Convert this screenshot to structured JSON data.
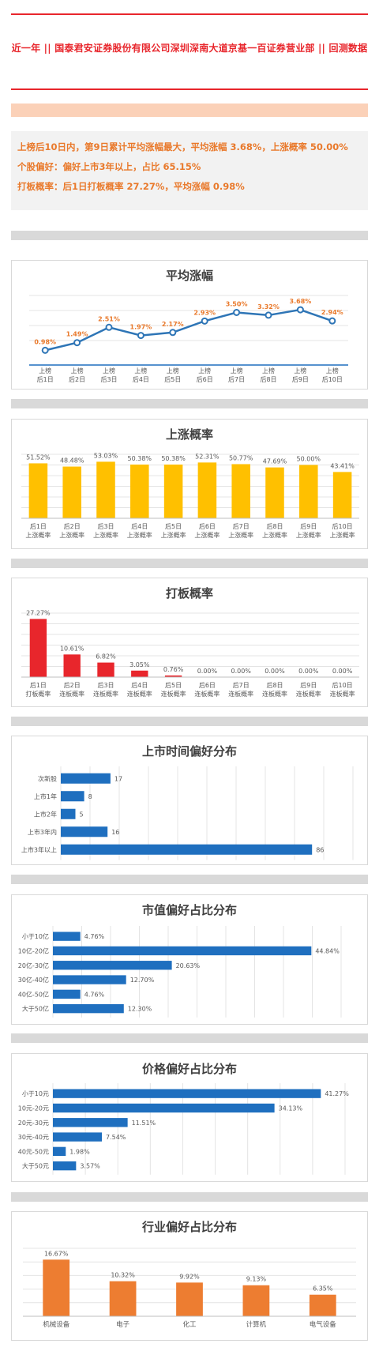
{
  "header": {
    "title": "近一年 || 国泰君安证券股份有限公司深圳深南大道京基一百证券营业部 || 回测数据"
  },
  "summary": {
    "line1": "上榜后10日内，第9日累计平均涨幅最大，平均涨幅 3.68%，上涨概率 50.00%",
    "line2": "个股偏好：偏好上市3年以上，占比 65.15%",
    "line3": "打板概率：后1日打板概率 27.27%，平均涨幅 0.98%"
  },
  "colors": {
    "line": "#2e75b6",
    "yellow": "#ffc000",
    "red": "#e8262c",
    "blue": "#1f6fbf",
    "orange": "#ed7d31",
    "label_orange": "#e9792b"
  },
  "chart_data": [
    {
      "type": "line",
      "title": "平均涨幅",
      "categories": [
        [
          "上榜",
          "后1日"
        ],
        [
          "上榜",
          "后2日"
        ],
        [
          "上榜",
          "后3日"
        ],
        [
          "上榜",
          "后4日"
        ],
        [
          "上榜",
          "后5日"
        ],
        [
          "上榜",
          "后6日"
        ],
        [
          "上榜",
          "后7日"
        ],
        [
          "上榜",
          "后8日"
        ],
        [
          "上榜",
          "后9日"
        ],
        [
          "上榜",
          "后10日"
        ]
      ],
      "values": [
        0.98,
        1.49,
        2.51,
        1.97,
        2.17,
        2.93,
        3.5,
        3.32,
        3.68,
        2.94
      ],
      "labels": [
        "0.98%",
        "1.49%",
        "2.51%",
        "1.97%",
        "2.17%",
        "2.93%",
        "3.50%",
        "3.32%",
        "3.68%",
        "2.94%"
      ],
      "ylim": [
        0,
        4
      ],
      "grid": true
    },
    {
      "type": "bar",
      "title": "上涨概率",
      "categories": [
        [
          "后1日",
          "上涨概率"
        ],
        [
          "后2日",
          "上涨概率"
        ],
        [
          "后3日",
          "上涨概率"
        ],
        [
          "后4日",
          "上涨概率"
        ],
        [
          "后5日",
          "上涨概率"
        ],
        [
          "后6日",
          "上涨概率"
        ],
        [
          "后7日",
          "上涨概率"
        ],
        [
          "后8日",
          "上涨概率"
        ],
        [
          "后9日",
          "上涨概率"
        ],
        [
          "后10日",
          "上涨概率"
        ]
      ],
      "values": [
        51.52,
        48.48,
        53.03,
        50.38,
        50.38,
        52.31,
        50.77,
        47.69,
        50.0,
        43.41
      ],
      "labels": [
        "51.52%",
        "48.48%",
        "53.03%",
        "50.38%",
        "50.38%",
        "52.31%",
        "50.77%",
        "47.69%",
        "50.00%",
        "43.41%"
      ],
      "ylim": [
        0,
        60
      ],
      "grid": true
    },
    {
      "type": "bar",
      "title": "打板概率",
      "categories": [
        [
          "后1日",
          "打板概率"
        ],
        [
          "后2日",
          "连板概率"
        ],
        [
          "后3日",
          "连板概率"
        ],
        [
          "后4日",
          "连板概率"
        ],
        [
          "后5日",
          "连板概率"
        ],
        [
          "后6日",
          "连板概率"
        ],
        [
          "后7日",
          "连板概率"
        ],
        [
          "后8日",
          "连板概率"
        ],
        [
          "后9日",
          "连板概率"
        ],
        [
          "后10日",
          "连板概率"
        ]
      ],
      "values": [
        27.27,
        10.61,
        6.82,
        3.05,
        0.76,
        0,
        0,
        0,
        0,
        0
      ],
      "labels": [
        "27.27%",
        "10.61%",
        "6.82%",
        "3.05%",
        "0.76%",
        "0.00%",
        "0.00%",
        "0.00%",
        "0.00%",
        "0.00%"
      ],
      "ylim": [
        0,
        30
      ],
      "grid": true
    },
    {
      "type": "bar",
      "orientation": "horizontal",
      "title": "上市时间偏好分布",
      "categories": [
        "次新股",
        "上市1年",
        "上市2年",
        "上市3年内",
        "上市3年以上"
      ],
      "values": [
        17,
        8,
        5,
        16,
        86
      ],
      "labels": [
        "17",
        "8",
        "5",
        "16",
        "86"
      ],
      "xlim": [
        0,
        100
      ],
      "grid": true
    },
    {
      "type": "bar",
      "orientation": "horizontal",
      "title": "市值偏好占比分布",
      "categories": [
        "小于10亿",
        "10亿-20亿",
        "20亿-30亿",
        "30亿-40亿",
        "40亿-50亿",
        "大于50亿"
      ],
      "values": [
        4.76,
        44.84,
        20.63,
        12.7,
        4.76,
        12.3
      ],
      "labels": [
        "4.76%",
        "44.84%",
        "20.63%",
        "12.70%",
        "4.76%",
        "12.30%"
      ],
      "xlim": [
        0,
        50
      ],
      "grid": true
    },
    {
      "type": "bar",
      "orientation": "horizontal",
      "title": "价格偏好占比分布",
      "categories": [
        "小于10元",
        "10元-20元",
        "20元-30元",
        "30元-40元",
        "40元-50元",
        "大于50元"
      ],
      "values": [
        41.27,
        34.13,
        11.51,
        7.54,
        1.98,
        3.57
      ],
      "labels": [
        "41.27%",
        "34.13%",
        "11.51%",
        "7.54%",
        "1.98%",
        "3.57%"
      ],
      "xlim": [
        0,
        45
      ],
      "grid": true
    },
    {
      "type": "bar",
      "title": "行业偏好占比分布",
      "categories": [
        "机械设备",
        "电子",
        "化工",
        "计算机",
        "电气设备"
      ],
      "values": [
        16.67,
        10.32,
        9.92,
        9.13,
        6.35
      ],
      "labels": [
        "16.67%",
        "10.32%",
        "9.92%",
        "9.13%",
        "6.35%"
      ],
      "ylim": [
        0,
        20
      ],
      "grid": true
    }
  ]
}
